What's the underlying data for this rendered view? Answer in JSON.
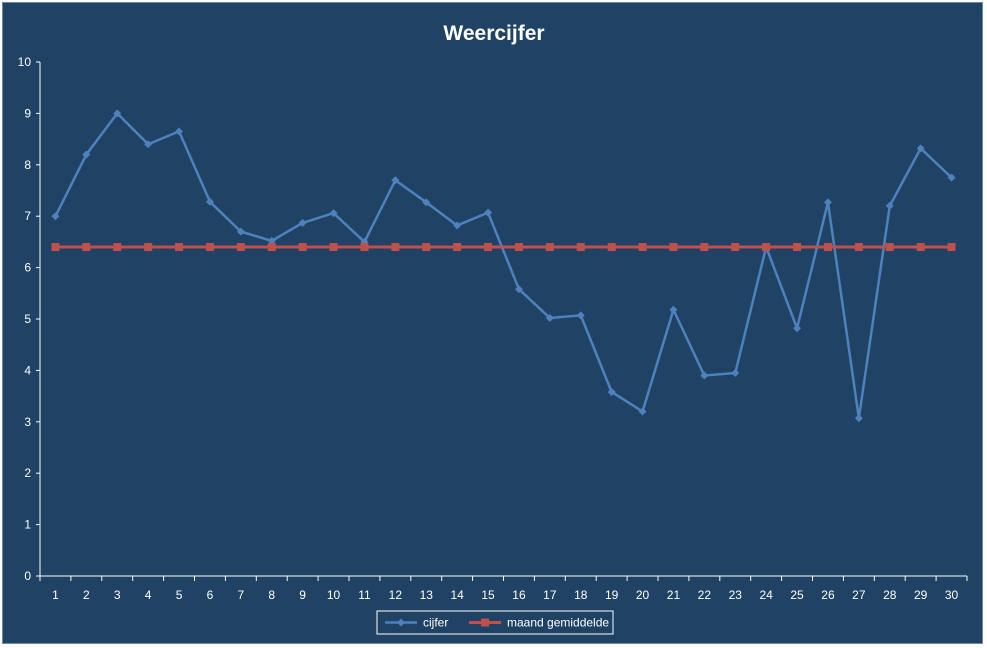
{
  "colors": {
    "background": "#1f4265",
    "axis": "#ffffff",
    "cijfer": "#4f81bd",
    "gemiddelde": "#c0504d"
  },
  "chart_data": {
    "type": "line",
    "title": "Weercijfer",
    "xlabel": "",
    "ylabel": "",
    "x": [
      1,
      2,
      3,
      4,
      5,
      6,
      7,
      8,
      9,
      10,
      11,
      12,
      13,
      14,
      15,
      16,
      17,
      18,
      19,
      20,
      21,
      22,
      23,
      24,
      25,
      26,
      27,
      28,
      29,
      30
    ],
    "ylim": [
      0,
      10
    ],
    "yticks": [
      0,
      1,
      2,
      3,
      4,
      5,
      6,
      7,
      8,
      9,
      10
    ],
    "grid": false,
    "legend": "bottom",
    "series": [
      {
        "name": "cijfer",
        "marker": "diamond",
        "values": [
          7.0,
          8.2,
          9.0,
          8.4,
          8.65,
          7.28,
          6.7,
          6.52,
          6.87,
          7.06,
          6.5,
          7.7,
          7.27,
          6.82,
          7.07,
          5.58,
          5.02,
          5.07,
          3.58,
          3.2,
          5.18,
          3.9,
          3.95,
          6.4,
          4.82,
          7.27,
          3.07,
          7.2,
          8.32,
          7.75
        ]
      },
      {
        "name": "maand gemiddelde",
        "marker": "square",
        "values": [
          6.4,
          6.4,
          6.4,
          6.4,
          6.4,
          6.4,
          6.4,
          6.4,
          6.4,
          6.4,
          6.4,
          6.4,
          6.4,
          6.4,
          6.4,
          6.4,
          6.4,
          6.4,
          6.4,
          6.4,
          6.4,
          6.4,
          6.4,
          6.4,
          6.4,
          6.4,
          6.4,
          6.4,
          6.4,
          6.4
        ]
      }
    ]
  }
}
